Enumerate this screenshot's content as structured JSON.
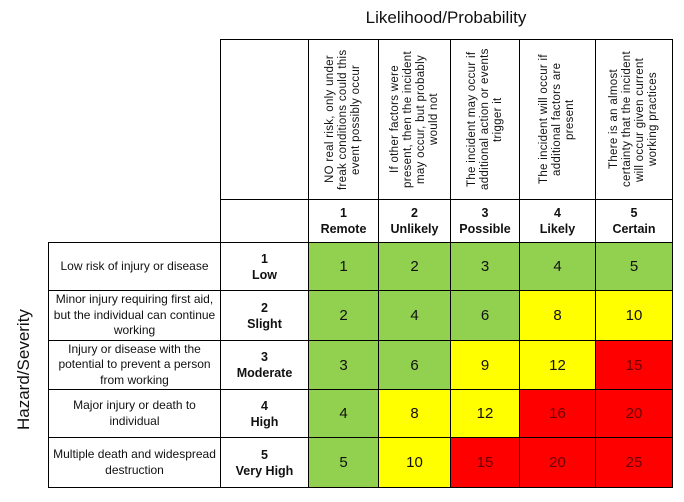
{
  "titles": {
    "likelihood": "Likelihood/Probability",
    "severity": "Hazard/Severity"
  },
  "likelihood": [
    {
      "num": "1",
      "label": "Remote",
      "desc": "NO real risk, only under freak conditions could this event possibly occur"
    },
    {
      "num": "2",
      "label": "Unlikely",
      "desc": "If other factors were present, then the incident may occur, but probably would not"
    },
    {
      "num": "3",
      "label": "Possible",
      "desc": "The incident may occur if additional action or events trigger it"
    },
    {
      "num": "4",
      "label": "Likely",
      "desc": "The incident will occur if additional factors are present"
    },
    {
      "num": "5",
      "label": "Certain",
      "desc": "There is an almost certainty that the incident will occur given current working practices"
    }
  ],
  "severity": [
    {
      "num": "1",
      "label": "Low",
      "desc": "Low risk of injury or disease"
    },
    {
      "num": "2",
      "label": "Slight",
      "desc": "Minor injury requiring first aid, but the individual can continue working"
    },
    {
      "num": "3",
      "label": "Moderate",
      "desc": "Injury or disease with the potential to prevent a person from working"
    },
    {
      "num": "4",
      "label": "High",
      "desc": "Major injury or death to individual"
    },
    {
      "num": "5",
      "label": "Very High",
      "desc": "Multiple death and widespread destruction"
    }
  ],
  "matrix": [
    [
      "1",
      "2",
      "3",
      "4",
      "5"
    ],
    [
      "2",
      "4",
      "6",
      "8",
      "10"
    ],
    [
      "3",
      "6",
      "9",
      "12",
      "15"
    ],
    [
      "4",
      "8",
      "12",
      "16",
      "20"
    ],
    [
      "5",
      "10",
      "15",
      "20",
      "25"
    ]
  ],
  "matrix_colors": [
    [
      "g",
      "g",
      "g",
      "g",
      "g"
    ],
    [
      "g",
      "g",
      "g",
      "y",
      "y"
    ],
    [
      "g",
      "g",
      "y",
      "y",
      "r"
    ],
    [
      "g",
      "y",
      "y",
      "r",
      "r"
    ],
    [
      "g",
      "y",
      "r",
      "r",
      "r"
    ]
  ],
  "colors": {
    "low_green": "#92d050",
    "medium_yellow": "#ffff00",
    "high_red": "#ff0000"
  }
}
